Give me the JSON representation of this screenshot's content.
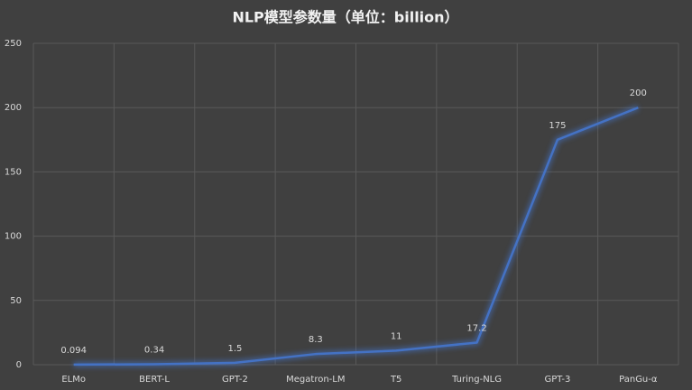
{
  "chart_data": {
    "type": "line",
    "title": "NLP模型参数量（单位：billion）",
    "categories": [
      "ELMo",
      "BERT-L",
      "GPT-2",
      "Megatron-LM",
      "T5",
      "Turing-NLG",
      "GPT-3",
      "PanGu-α"
    ],
    "values": [
      0.094,
      0.34,
      1.5,
      8.3,
      11,
      17.2,
      175,
      200
    ],
    "color": "#4472c4",
    "ylim": [
      0,
      250
    ],
    "yticks": [
      0,
      50,
      100,
      150,
      200,
      250
    ],
    "grid": true
  }
}
